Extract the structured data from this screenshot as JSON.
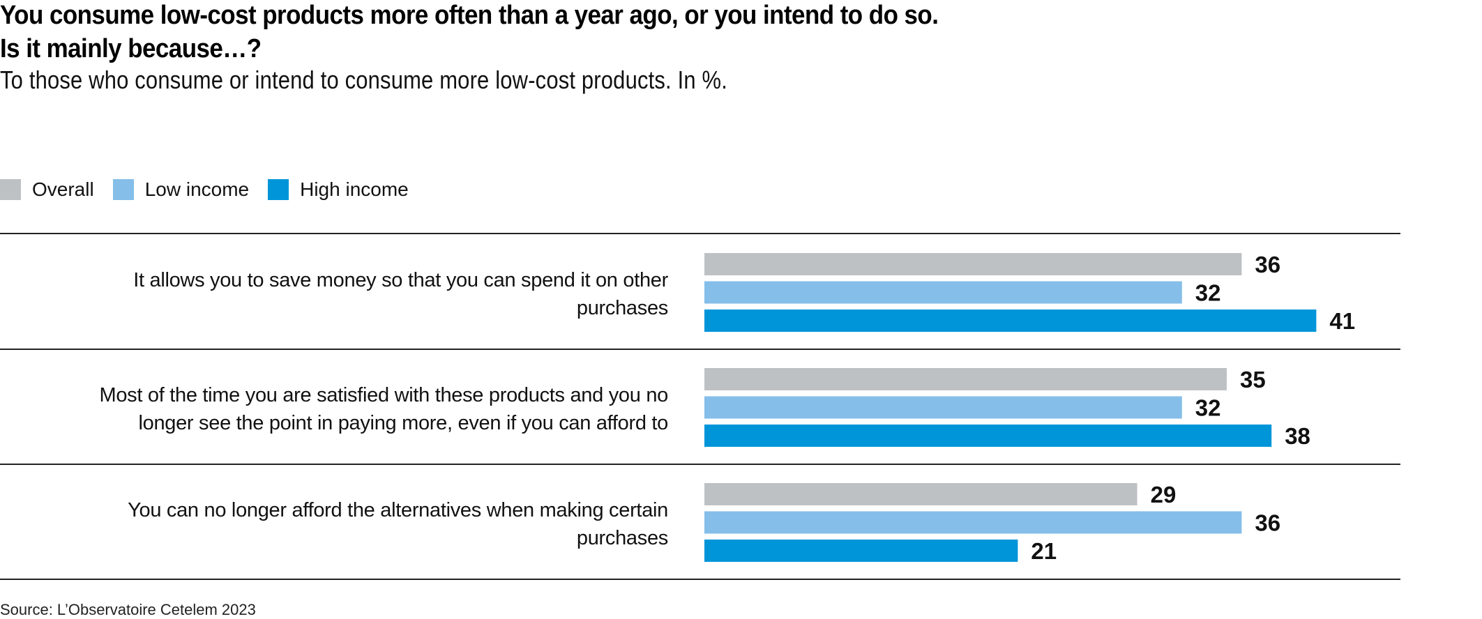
{
  "header": {
    "title_line1": "You consume low-cost products more often than a year ago, or you intend to do so.",
    "title_line2": "Is it mainly because…?",
    "subtitle": "To those who consume or intend to consume more low-cost products. In %."
  },
  "legend": [
    {
      "label": "Overall",
      "color": "#bec1c4"
    },
    {
      "label": "Low income",
      "color": "#85bee9"
    },
    {
      "label": "High income",
      "color": "#0095d9"
    }
  ],
  "footer": {
    "source": "Source: L’Observatoire Cetelem 2023"
  },
  "chart_data": {
    "type": "bar",
    "orientation": "horizontal",
    "title": "You consume low-cost products more often than a year ago, or you intend to do so. Is it mainly because…?",
    "subtitle": "To those who consume or intend to consume more low-cost products. In %.",
    "xlabel": "",
    "ylabel": "",
    "unit": "%",
    "xlim": [
      0,
      45
    ],
    "grid": false,
    "legend_position": "top-left",
    "categories": [
      [
        "It allows you to save money so that you can spend it on other",
        "purchases"
      ],
      [
        "Most of the time you are satisfied with these products and you no",
        "longer see the point in paying more, even if you can afford to"
      ],
      [
        "You can no longer afford the alternatives when making certain",
        "purchases"
      ]
    ],
    "series": [
      {
        "name": "Overall",
        "color": "#bec1c4",
        "values": [
          36,
          35,
          29
        ]
      },
      {
        "name": "Low income",
        "color": "#85bee9",
        "values": [
          32,
          32,
          36
        ]
      },
      {
        "name": "High income",
        "color": "#0095d9",
        "values": [
          41,
          38,
          21
        ]
      }
    ],
    "source": "Source: L’Observatoire Cetelem 2023"
  }
}
